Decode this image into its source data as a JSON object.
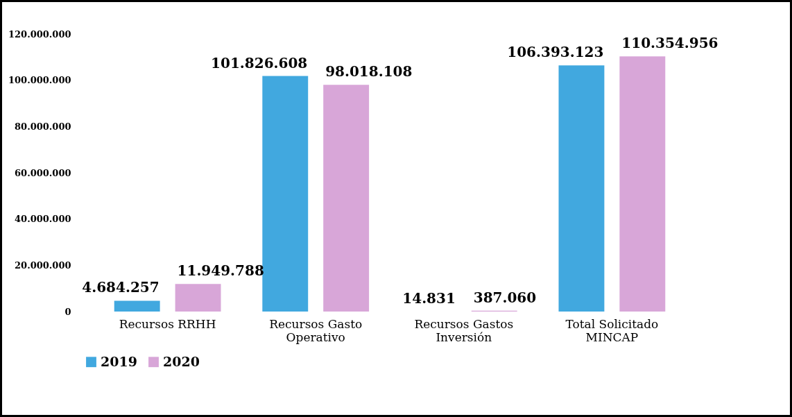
{
  "chart_data": {
    "type": "bar",
    "categories": [
      "Recursos RRHH",
      "Recursos Gasto Operativo",
      "Recursos Gastos Inversión",
      "Total Solicitado MINCAP"
    ],
    "series": [
      {
        "name": "2019",
        "color": "#41a8df",
        "values": [
          4684257,
          101826608,
          14831,
          106393123
        ],
        "value_labels": [
          "4.684.257",
          "101.826.608",
          "14.831",
          "106.393.123"
        ]
      },
      {
        "name": "2020",
        "color": "#d8a6d8",
        "values": [
          11949788,
          98018108,
          387060,
          110354956
        ],
        "value_labels": [
          "11.949.788",
          "98.018.108",
          "387.060",
          "110.354.956"
        ]
      }
    ],
    "ylim": [
      0,
      120000000
    ],
    "yticks": [
      0,
      {
        "value": 20000000,
        "label": "20.000.000"
      },
      {
        "value": 40000000,
        "label": "40.000.000"
      },
      {
        "value": 60000000,
        "label": "60.000.000"
      },
      {
        "value": 80000000,
        "label": "80.000.000"
      },
      {
        "value": 100000000,
        "label": "100.000.000"
      },
      {
        "value": 120000000,
        "label": "120.000.000"
      }
    ],
    "grid": false,
    "legend": "bottom"
  }
}
